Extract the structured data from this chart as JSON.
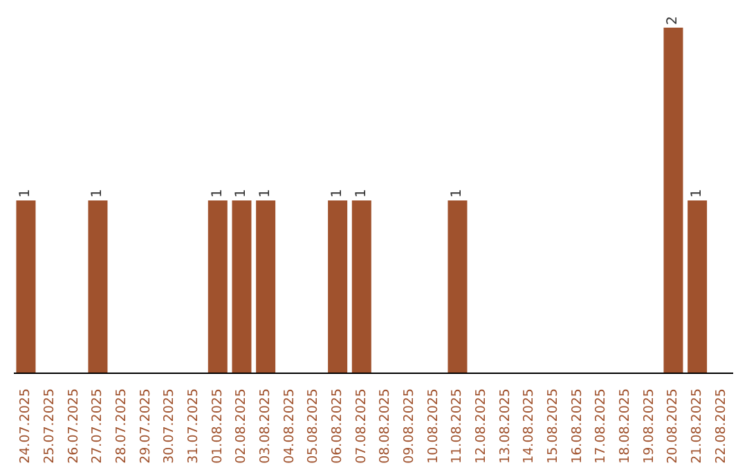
{
  "chart_data": {
    "type": "bar",
    "categories": [
      "24.07.2025",
      "25.07.2025",
      "26.07.2025",
      "27.07.2025",
      "28.07.2025",
      "29.07.2025",
      "30.07.2025",
      "31.07.2025",
      "01.08.2025",
      "02.08.2025",
      "03.08.2025",
      "04.08.2025",
      "05.08.2025",
      "06.08.2025",
      "07.08.2025",
      "08.08.2025",
      "09.08.2025",
      "10.08.2025",
      "11.08.2025",
      "12.08.2025",
      "13.08.2025",
      "14.08.2025",
      "15.08.2025",
      "16.08.2025",
      "17.08.2025",
      "18.08.2025",
      "19.08.2025",
      "20.08.2025",
      "21.08.2025",
      "22.08.2025"
    ],
    "values": [
      1,
      0,
      0,
      1,
      0,
      0,
      0,
      0,
      1,
      1,
      1,
      0,
      0,
      1,
      1,
      0,
      0,
      0,
      1,
      0,
      0,
      0,
      0,
      0,
      0,
      0,
      0,
      2,
      1,
      0
    ],
    "value_labels": [
      "1",
      null,
      null,
      "1",
      null,
      null,
      null,
      null,
      "1",
      "1",
      "1",
      null,
      null,
      "1",
      "1",
      null,
      null,
      null,
      "1",
      null,
      null,
      null,
      null,
      null,
      null,
      null,
      null,
      "2",
      "1",
      null
    ],
    "color": "#a0522d",
    "tick_labels": "x"
  }
}
